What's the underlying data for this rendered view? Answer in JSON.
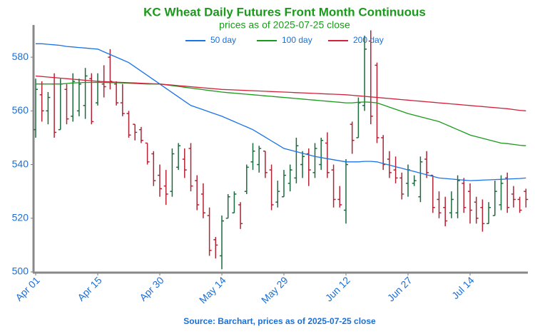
{
  "chart_data": {
    "type": "ohlc",
    "title": "KC Wheat Daily Futures Front Month Continuous",
    "subtitle": "prices as of 2025-07-25 close",
    "source": "Source: Barchart, prices as of 2025-07-25 close",
    "title_color": "#1a9a1a",
    "up_color": "#1a6b3c",
    "down_color": "#b22234",
    "categories": [
      "Apr 01",
      null,
      null,
      null,
      null,
      null,
      null,
      null,
      null,
      null,
      "Apr 15",
      null,
      null,
      null,
      null,
      null,
      null,
      null,
      null,
      null,
      "Apr 30",
      null,
      null,
      null,
      null,
      null,
      null,
      null,
      null,
      null,
      "May 14",
      null,
      null,
      null,
      null,
      null,
      null,
      null,
      null,
      null,
      "May 29",
      null,
      null,
      null,
      null,
      null,
      null,
      null,
      null,
      null,
      "Jun 12",
      null,
      null,
      null,
      null,
      null,
      null,
      null,
      null,
      null,
      "Jun 27",
      null,
      null,
      null,
      null,
      null,
      null,
      null,
      null,
      null,
      "Jul 14",
      null,
      null,
      null,
      null,
      null,
      null,
      null,
      null,
      null
    ],
    "open": [
      553,
      566,
      560,
      570,
      553,
      568,
      558,
      560,
      562,
      572,
      563,
      570,
      580,
      570,
      563,
      559,
      555,
      553,
      548,
      544,
      536,
      532,
      530,
      539,
      542,
      546,
      534,
      529,
      521,
      512,
      506,
      520,
      522,
      525,
      530,
      541,
      540,
      545,
      538,
      526,
      528,
      533,
      535,
      540,
      544,
      537,
      540,
      548,
      538,
      527,
      523,
      555,
      550,
      562,
      586,
      577,
      550,
      542,
      538,
      535,
      533,
      533,
      528,
      542,
      536,
      527,
      524,
      522,
      522,
      533,
      530,
      526,
      524,
      518,
      521,
      525,
      535,
      529,
      527,
      530
    ],
    "high": [
      572,
      571,
      567,
      574,
      572,
      570,
      574,
      572,
      576,
      574,
      574,
      577,
      583,
      571,
      570,
      560,
      555,
      554,
      548,
      545,
      540,
      538,
      546,
      548,
      546,
      548,
      536,
      533,
      524,
      513,
      521,
      529,
      530,
      526,
      540,
      548,
      547,
      545,
      540,
      534,
      538,
      540,
      550,
      545,
      546,
      548,
      550,
      552,
      540,
      532,
      542,
      556,
      565,
      588,
      590,
      578,
      551,
      545,
      543,
      537,
      540,
      536,
      543,
      545,
      536,
      530,
      528,
      530,
      536,
      535,
      533,
      528,
      527,
      526,
      534,
      536,
      537,
      532,
      528,
      531
    ],
    "low": [
      550,
      556,
      555,
      550,
      553,
      555,
      556,
      558,
      557,
      555,
      562,
      565,
      568,
      562,
      558,
      550,
      549,
      548,
      540,
      532,
      528,
      525,
      528,
      538,
      535,
      530,
      523,
      520,
      506,
      505,
      501,
      520,
      522,
      516,
      529,
      538,
      537,
      535,
      523,
      524,
      528,
      530,
      533,
      535,
      532,
      535,
      538,
      535,
      524,
      524,
      518,
      544,
      550,
      560,
      555,
      548,
      538,
      535,
      533,
      527,
      528,
      532,
      526,
      535,
      522,
      520,
      517,
      520,
      520,
      522,
      518,
      518,
      515,
      518,
      521,
      523,
      522,
      524,
      522,
      524
    ],
    "close": [
      568,
      560,
      565,
      552,
      570,
      557,
      571,
      570,
      573,
      556,
      571,
      569,
      571,
      563,
      559,
      551,
      552,
      549,
      541,
      534,
      531,
      529,
      544,
      547,
      538,
      532,
      525,
      522,
      508,
      510,
      519,
      528,
      529,
      518,
      539,
      545,
      546,
      537,
      525,
      530,
      536,
      538,
      547,
      543,
      538,
      546,
      549,
      537,
      527,
      525,
      540,
      549,
      563,
      583,
      558,
      550,
      540,
      537,
      535,
      529,
      538,
      534,
      541,
      537,
      524,
      522,
      519,
      527,
      534,
      524,
      523,
      520,
      518,
      524,
      530,
      533,
      524,
      527,
      523,
      527
    ],
    "series": [
      {
        "name": "50 day",
        "color": "#1a73e8",
        "values": [
          585,
          585,
          584.8,
          584.6,
          584.4,
          584,
          583.8,
          583.6,
          583.4,
          583.2,
          583,
          582,
          581,
          580,
          579,
          578,
          576.4,
          574.8,
          573.2,
          571.6,
          570,
          568.4,
          566.8,
          565.2,
          563.6,
          562,
          561.2,
          560.4,
          559.6,
          558.8,
          558,
          557,
          556,
          555,
          554,
          553,
          551.6,
          550.2,
          548.8,
          547.4,
          546,
          545.4,
          544.8,
          544.2,
          543.6,
          543,
          542.6,
          542.2,
          541.8,
          541.4,
          541,
          541,
          541,
          541.2,
          541.2,
          541,
          540.4,
          539.8,
          539.2,
          538.6,
          538,
          537.4,
          536.8,
          536.2,
          535.6,
          535,
          534.8,
          534.6,
          534.4,
          534.2,
          534,
          534.1,
          534.2,
          534.3,
          534.4,
          534.5,
          534.6,
          534.7,
          534.8,
          535
        ]
      },
      {
        "name": "100 day",
        "color": "#1a9a1a",
        "values": [
          570,
          570,
          570,
          570,
          570,
          570.2,
          570.4,
          570.5,
          570.6,
          570.6,
          570.6,
          570.6,
          570.5,
          570.5,
          570.4,
          570.3,
          570.2,
          570.1,
          570,
          570,
          570,
          569.7,
          569.4,
          569.1,
          568.8,
          568.5,
          568.2,
          567.9,
          567.6,
          567.3,
          567,
          566.8,
          566.6,
          566.4,
          566.2,
          566,
          565.8,
          565.6,
          565.4,
          565.2,
          565,
          564.8,
          564.6,
          564.4,
          564.2,
          564,
          563.8,
          563.6,
          563.4,
          563.2,
          563,
          563,
          563.2,
          563.3,
          563.2,
          563,
          562.2,
          561.4,
          560.6,
          559.8,
          559,
          558.4,
          557.8,
          557.2,
          556.6,
          556,
          555,
          554,
          553,
          552,
          551,
          550.4,
          549.8,
          549.2,
          548.6,
          548,
          547.8,
          547.5,
          547.2,
          547
        ]
      },
      {
        "name": "200 day",
        "color": "#d0223a",
        "values": [
          573,
          572.8,
          572.6,
          572.4,
          572.2,
          572,
          571.8,
          571.6,
          571.4,
          571.2,
          571,
          570.9,
          570.8,
          570.7,
          570.6,
          570.5,
          570.4,
          570.3,
          570.2,
          570.1,
          570,
          569.8,
          569.6,
          569.4,
          569.2,
          569,
          568.8,
          568.6,
          568.4,
          568.2,
          568,
          567.9,
          567.8,
          567.7,
          567.6,
          567.5,
          567.4,
          567.3,
          567.2,
          567.1,
          567,
          566.9,
          566.8,
          566.7,
          566.6,
          566.5,
          566.4,
          566.3,
          566.2,
          566.1,
          566,
          565.8,
          565.6,
          565.4,
          565.2,
          565,
          564.8,
          564.6,
          564.4,
          564.2,
          564,
          563.8,
          563.6,
          563.4,
          563.2,
          563,
          562.8,
          562.6,
          562.4,
          562.2,
          562,
          561.8,
          561.6,
          561.4,
          561.2,
          561,
          560.8,
          560.5,
          560.2,
          560
        ]
      }
    ],
    "ylim": [
      500,
      592
    ],
    "yticks": [
      500,
      520,
      540,
      560,
      580
    ],
    "legend": "top"
  }
}
